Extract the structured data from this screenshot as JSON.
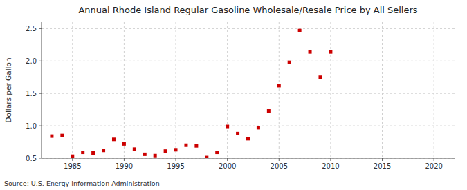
{
  "chart_data": {
    "type": "scatter",
    "title": "Annual Rhode Island Regular Gasoline Wholesale/Resale Price by All Sellers",
    "ylabel": "Dollars per Gallon",
    "source": "Source: U.S. Energy Information Administration",
    "x": [
      1983,
      1984,
      1985,
      1986,
      1987,
      1988,
      1989,
      1990,
      1991,
      1992,
      1993,
      1994,
      1995,
      1996,
      1997,
      1998,
      1999,
      2000,
      2001,
      2002,
      2003,
      2004,
      2005,
      2006,
      2007,
      2008,
      2009,
      2010
    ],
    "values": [
      0.84,
      0.85,
      0.53,
      0.59,
      0.58,
      0.62,
      0.79,
      0.72,
      0.64,
      0.56,
      0.54,
      0.61,
      0.63,
      0.7,
      0.69,
      0.51,
      0.59,
      0.99,
      0.88,
      0.8,
      0.97,
      1.23,
      1.62,
      1.98,
      2.47,
      2.14,
      1.75,
      2.14
    ],
    "color": "#cc0000",
    "marker": "square",
    "xlim": [
      1982,
      2022
    ],
    "ylim": [
      0.5,
      2.6
    ],
    "xticks": [
      1985,
      1990,
      1995,
      2000,
      2005,
      2010,
      2015,
      2020
    ],
    "yticks": [
      0.5,
      {
        "value": 1.0,
        "label": "1.0"
      },
      1.5,
      {
        "value": 2.0,
        "label": "2.0"
      },
      2.5
    ],
    "grid": true
  }
}
